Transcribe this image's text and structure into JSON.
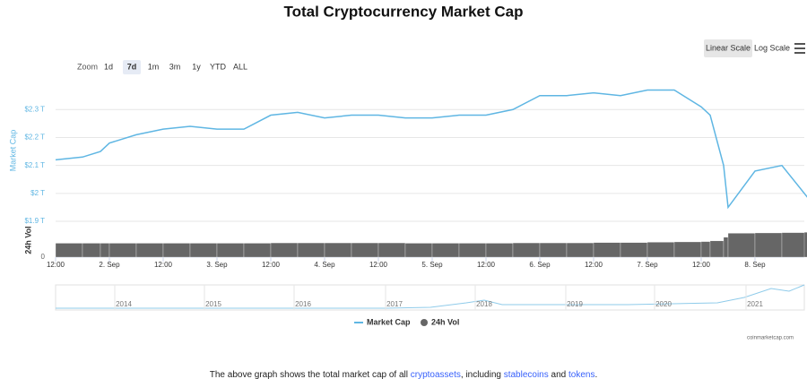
{
  "title": "Total Cryptocurrency Market Cap",
  "scale_buttons": [
    "Linear Scale",
    "Log Scale"
  ],
  "zoom_label": "Zoom",
  "zoom_buttons": [
    "1d",
    "7d",
    "1m",
    "3m",
    "1y",
    "YTD",
    "ALL"
  ],
  "chart_data": {
    "type": "line",
    "ylabel": "Market Cap",
    "y2label": "24h Vol",
    "x": [
      0,
      6,
      10,
      12,
      18,
      24,
      30,
      36,
      42,
      48,
      54,
      60,
      66,
      72,
      78,
      84,
      90,
      96,
      102,
      108,
      114,
      120,
      126,
      132,
      138,
      144,
      146,
      149,
      150,
      156,
      162,
      168
    ],
    "xlim": [
      0,
      167
    ],
    "xticks": [
      {
        "value": 0,
        "label": "12:00"
      },
      {
        "value": 12,
        "label": "2. Sep"
      },
      {
        "value": 24,
        "label": "12:00"
      },
      {
        "value": 36,
        "label": "3. Sep"
      },
      {
        "value": 48,
        "label": "12:00"
      },
      {
        "value": 60,
        "label": "4. Sep"
      },
      {
        "value": 72,
        "label": "12:00"
      },
      {
        "value": 84,
        "label": "5. Sep"
      },
      {
        "value": 96,
        "label": "12:00"
      },
      {
        "value": 108,
        "label": "6. Sep"
      },
      {
        "value": 120,
        "label": "12:00"
      },
      {
        "value": 132,
        "label": "7. Sep"
      },
      {
        "value": 144,
        "label": "12:00"
      },
      {
        "value": 156,
        "label": "8. Sep"
      }
    ],
    "ylim": [
      1.9,
      2.41
    ],
    "yticks": [
      {
        "value": 1.9,
        "label": "$1.9 T"
      },
      {
        "value": 2,
        "label": "$2 T"
      },
      {
        "value": 2.1,
        "label": "$2.1 T"
      },
      {
        "value": 2.2,
        "label": "$2.2 T"
      },
      {
        "value": 2.3,
        "label": "$2.3 T"
      }
    ],
    "y2lim": [
      0,
      100
    ],
    "y2ticks": [
      0
    ],
    "grid": true,
    "series": [
      {
        "name": "Market Cap",
        "color": "#5fb6e3",
        "values": [
          2.12,
          2.13,
          2.15,
          2.18,
          2.21,
          2.23,
          2.24,
          2.23,
          2.23,
          2.28,
          2.29,
          2.27,
          2.28,
          2.28,
          2.27,
          2.27,
          2.28,
          2.28,
          2.3,
          2.35,
          2.35,
          2.36,
          2.35,
          2.37,
          2.37,
          2.31,
          2.28,
          2.1,
          1.95,
          2.08,
          2.1,
          1.98
        ]
      },
      {
        "name": "24h Vol",
        "color": "#666666",
        "axis": "y2",
        "values": [
          42,
          42,
          42,
          42,
          42,
          42,
          42,
          42,
          42,
          43,
          43,
          43,
          43,
          43,
          42,
          42,
          42,
          42,
          43,
          43,
          43,
          44,
          44,
          45,
          46,
          47,
          49,
          60,
          72,
          73,
          74,
          75
        ]
      }
    ]
  },
  "navigator": {
    "years": [
      "2014",
      "2015",
      "2016",
      "2017",
      "2018",
      "2019",
      "2020",
      "2021"
    ]
  },
  "credit": "coinmarketcap.com",
  "footer": {
    "parts": [
      "The above graph shows the total market cap of all ",
      "cryptoassets",
      ", including ",
      "stablecoins",
      " and ",
      "tokens",
      "."
    ]
  }
}
